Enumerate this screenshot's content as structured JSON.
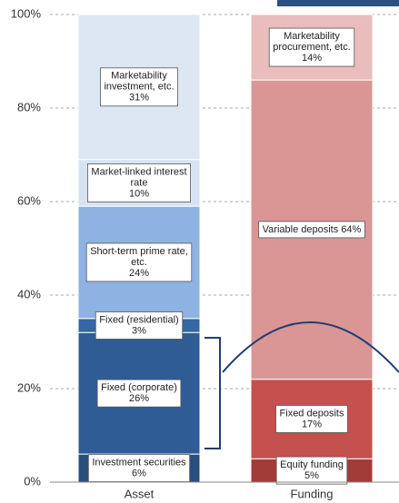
{
  "chart_data": {
    "type": "stacked_bar",
    "ylim": [
      0,
      100
    ],
    "yticks": [
      {
        "value": 0,
        "label": "0%"
      },
      {
        "value": 20,
        "label": "20%"
      },
      {
        "value": 40,
        "label": "40%"
      },
      {
        "value": 60,
        "label": "60%"
      },
      {
        "value": 80,
        "label": "80%"
      },
      {
        "value": 100,
        "label": "100%"
      }
    ],
    "grid": true,
    "bars": [
      {
        "category": "Asset",
        "segments": [
          {
            "label": [
              "Investment securities"
            ],
            "value": 6,
            "value_label": "6%",
            "color": "#2a4e7e"
          },
          {
            "label": [
              "Fixed (corporate)"
            ],
            "value": 26,
            "value_label": "26%",
            "color": "#2f5c94"
          },
          {
            "label": [
              "Fixed (residential)"
            ],
            "value": 3,
            "value_label": "3%",
            "color": "#3566a6"
          },
          {
            "label": [
              "Short-term prime rate,",
              "etc."
            ],
            "value": 24,
            "value_label": "24%",
            "color": "#8eb2e2"
          },
          {
            "label": [
              "Market-linked interest",
              "rate"
            ],
            "value": 10,
            "value_label": "10%",
            "color": "#d6e3f2"
          },
          {
            "label": [
              "Marketability",
              "investment, etc."
            ],
            "value": 31,
            "value_label": "31%",
            "color": "#dce7f3"
          }
        ]
      },
      {
        "category": "Funding",
        "segments": [
          {
            "label": [
              "Equity funding"
            ],
            "value": 5,
            "value_label": "5%",
            "color": "#a23c3a"
          },
          {
            "label": [
              "Fixed deposits"
            ],
            "value": 17,
            "value_label": "17%",
            "color": "#c4514e"
          },
          {
            "label": [
              "Variable deposits"
            ],
            "value": 64,
            "value_label": "64%",
            "color": "#da9695",
            "inline": true
          },
          {
            "label": [
              "Marketability",
              "procurement, etc."
            ],
            "value": 14,
            "value_label": "14%",
            "color": "#e8bdbc"
          }
        ]
      }
    ]
  }
}
